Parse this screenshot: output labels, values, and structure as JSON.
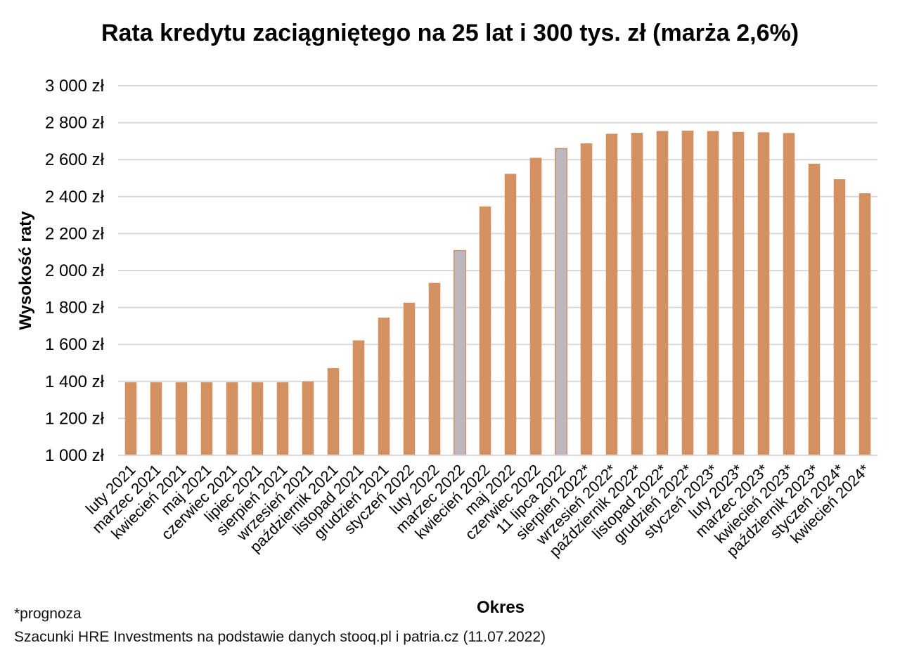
{
  "chart_data": {
    "type": "bar",
    "title": "Rata kredytu zaciągniętego na 25 lat i 300 tys. zł (marża 2,6%)",
    "xlabel": "Okres",
    "ylabel": "Wysokość raty",
    "ylim": [
      1000,
      3000
    ],
    "ytick_step": 200,
    "grid": true,
    "legend": "none",
    "categories": [
      "luty 2021",
      "marzec 2021",
      "kwiecień 2021",
      "maj 2021",
      "czerwiec 2021",
      "lipiec 2021",
      "sierpień 2021",
      "wrzesień 2021",
      "październik 2021",
      "listopad 2021",
      "grudzień 2021",
      "styczeń 2022",
      "luty 2022",
      "marzec 2022",
      "kwiecień 2022",
      "maj 2022",
      "czerwiec 2022",
      "11 lipca 2022",
      "sierpień 2022*",
      "wrzesień 2022*",
      "październik 2022*",
      "listopad 2022*",
      "grudzień 2022*",
      "styczeń 2023*",
      "luty 2023*",
      "marzec 2023*",
      "kwiecień 2023*",
      "październik 2023*",
      "styczeń 2024*",
      "kwiecień 2024*"
    ],
    "values": [
      1395,
      1395,
      1395,
      1395,
      1395,
      1395,
      1395,
      1400,
      1472,
      1622,
      1745,
      1826,
      1933,
      2108,
      2347,
      2523,
      2610,
      2660,
      2688,
      2740,
      2745,
      2755,
      2757,
      2755,
      2750,
      2748,
      2744,
      2578,
      2494,
      2418
    ],
    "highlighted": [
      "marzec 2022",
      "11 lipca 2022"
    ],
    "colors": {
      "bar": "#D4905E",
      "highlight": "#BDB8C0",
      "highlight_edge": "#D4905E",
      "grid": "#D9D9D9"
    }
  },
  "footnotes": {
    "forecast": "*prognoza",
    "source": "Szacunki HRE Investments na podstawie danych stooq.pl i patria.cz (11.07.2022)"
  }
}
